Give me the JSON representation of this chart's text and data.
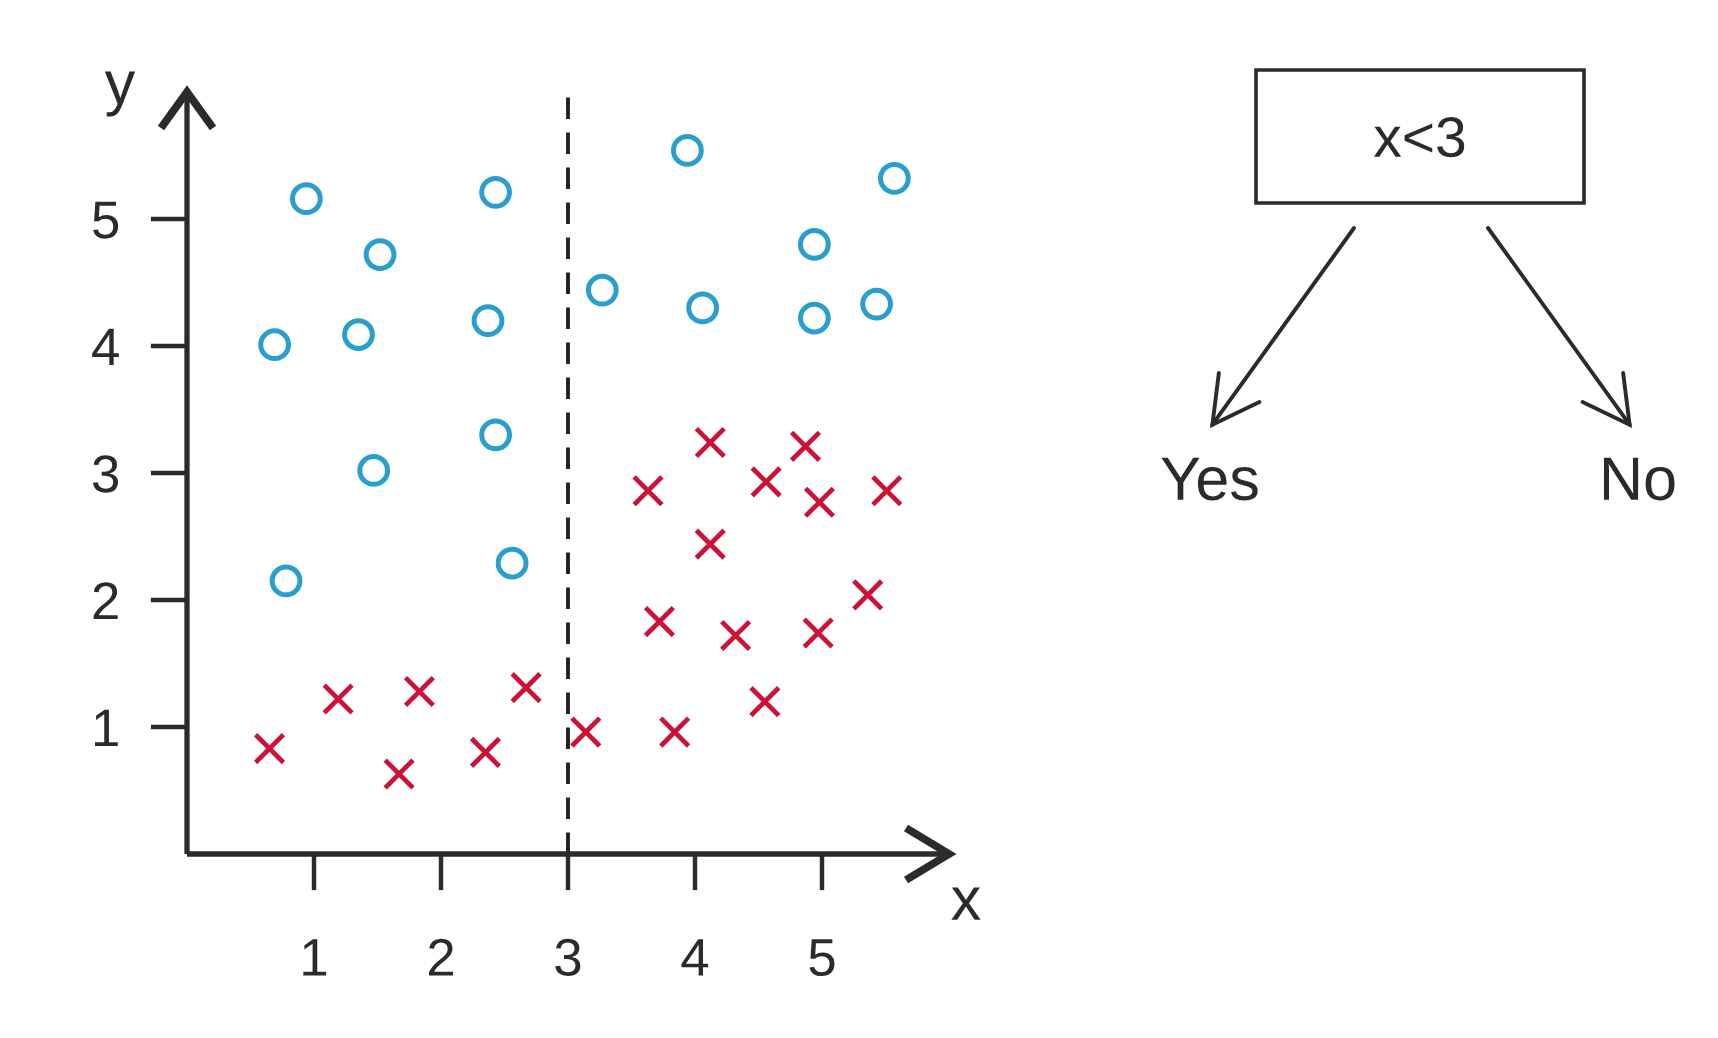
{
  "chart_data": {
    "type": "scatter",
    "xlabel": "x",
    "ylabel": "y",
    "xlim": [
      0,
      6
    ],
    "ylim": [
      0,
      6
    ],
    "xticks": [
      1,
      2,
      3,
      4,
      5
    ],
    "yticks": [
      1,
      2,
      3,
      4,
      5
    ],
    "ref_lines": [
      {
        "axis": "x",
        "value": 3,
        "color": "#222222",
        "line_style": "dashed"
      }
    ],
    "annotations": [
      "x<3",
      "Yes",
      "No"
    ],
    "series": [
      {
        "color": "#2a9fcd",
        "marker": "circle",
        "x": [
          0.94,
          1.52,
          2.43,
          0.69,
          1.35,
          2.37,
          2.43,
          1.47,
          0.78,
          2.56,
          3.27,
          3.94,
          4.06,
          4.94,
          4.94,
          5.57,
          5.43
        ],
        "values": [
          5.16,
          4.72,
          5.21,
          4.01,
          4.09,
          4.2,
          3.3,
          3.02,
          2.15,
          2.29,
          4.44,
          5.54,
          4.3,
          4.8,
          4.22,
          5.32,
          4.33
        ]
      },
      {
        "color": "#cc1236",
        "marker": "cross",
        "x": [
          0.65,
          1.19,
          1.67,
          1.83,
          2.35,
          2.67,
          3.14,
          3.84,
          4.55,
          3.72,
          4.32,
          4.97,
          5.36,
          3.63,
          4.12,
          4.12,
          4.56,
          4.87,
          4.98,
          5.51
        ],
        "values": [
          0.83,
          1.22,
          0.63,
          1.28,
          0.8,
          1.31,
          0.96,
          0.96,
          1.2,
          1.83,
          1.72,
          1.74,
          2.04,
          2.86,
          3.24,
          2.44,
          2.93,
          3.21,
          2.77,
          2.86
        ]
      }
    ]
  }
}
